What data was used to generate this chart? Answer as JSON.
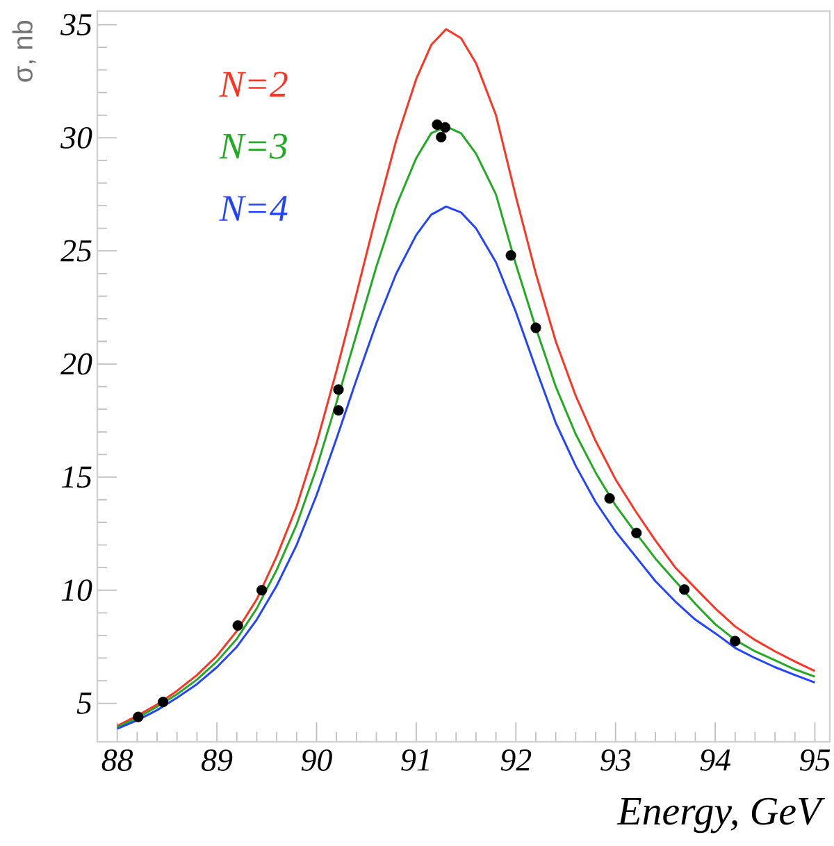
{
  "chart_data": {
    "type": "line",
    "xlabel": "*Energy, GeV*",
    "ylabel": "σ, nb",
    "xlim": [
      87.8,
      95.15
    ],
    "ylim": [
      3.3,
      35.6
    ],
    "xticks": [
      88,
      89,
      90,
      91,
      92,
      93,
      94,
      95
    ],
    "yticks": [
      5,
      10,
      15,
      20,
      25,
      30,
      35
    ],
    "legend": "top left",
    "line_style": "solid",
    "x": [
      88.0,
      88.2,
      88.4,
      88.6,
      88.8,
      89.0,
      89.2,
      89.4,
      89.6,
      89.8,
      90.0,
      90.2,
      90.4,
      90.6,
      90.8,
      91.0,
      91.15,
      91.3,
      91.45,
      91.6,
      91.8,
      92.0,
      92.2,
      92.4,
      92.6,
      92.8,
      93.0,
      93.2,
      93.4,
      93.6,
      93.8,
      94.0,
      94.2,
      94.4,
      94.6,
      94.8,
      95.0
    ],
    "series": [
      {
        "name": "*N=2*",
        "color": "#ff3322",
        "marker": "none",
        "values": [
          4.0,
          4.45,
          4.95,
          5.55,
          6.25,
          7.1,
          8.2,
          9.6,
          11.5,
          13.7,
          16.5,
          19.7,
          23.1,
          26.6,
          29.9,
          32.6,
          34.1,
          34.8,
          34.4,
          33.3,
          31.0,
          27.4,
          24.0,
          21.0,
          18.6,
          16.6,
          14.9,
          13.5,
          12.2,
          11.0,
          10.1,
          9.2,
          8.4,
          7.8,
          7.3,
          6.85,
          6.43
        ]
      },
      {
        "name": "*N=3*",
        "color": "#22aa22",
        "marker": "none",
        "values": [
          3.95,
          4.35,
          4.85,
          5.4,
          6.05,
          6.85,
          7.85,
          9.2,
          10.9,
          12.9,
          15.4,
          18.3,
          21.3,
          24.3,
          27.0,
          29.1,
          30.2,
          30.5,
          30.2,
          29.3,
          27.5,
          24.4,
          21.6,
          19.0,
          16.9,
          15.2,
          13.75,
          12.55,
          11.4,
          10.4,
          9.4,
          8.5,
          7.8,
          7.3,
          6.9,
          6.5,
          6.18
        ]
      },
      {
        "name": "*N=4*",
        "color": "#2244ff",
        "marker": "none",
        "values": [
          3.88,
          4.25,
          4.7,
          5.25,
          5.85,
          6.6,
          7.5,
          8.7,
          10.2,
          12.0,
          14.2,
          16.7,
          19.3,
          21.8,
          24.0,
          25.7,
          26.6,
          26.96,
          26.7,
          26.0,
          24.5,
          22.3,
          19.8,
          17.4,
          15.5,
          13.9,
          12.6,
          11.5,
          10.4,
          9.5,
          8.7,
          8.1,
          7.45,
          7.0,
          6.6,
          6.25,
          5.92
        ]
      },
      {
        "type": "scatter",
        "color": "#000000",
        "marker": "circle",
        "x": [
          88.21,
          88.46,
          89.21,
          89.45,
          90.22,
          90.22,
          91.21,
          91.25,
          91.29,
          91.95,
          92.2,
          92.94,
          93.21,
          93.69,
          94.2
        ],
        "values": [
          4.4,
          5.06,
          8.44,
          10.0,
          18.87,
          17.95,
          30.58,
          30.03,
          30.46,
          24.8,
          21.6,
          14.06,
          12.53,
          10.03,
          7.75
        ]
      }
    ]
  }
}
